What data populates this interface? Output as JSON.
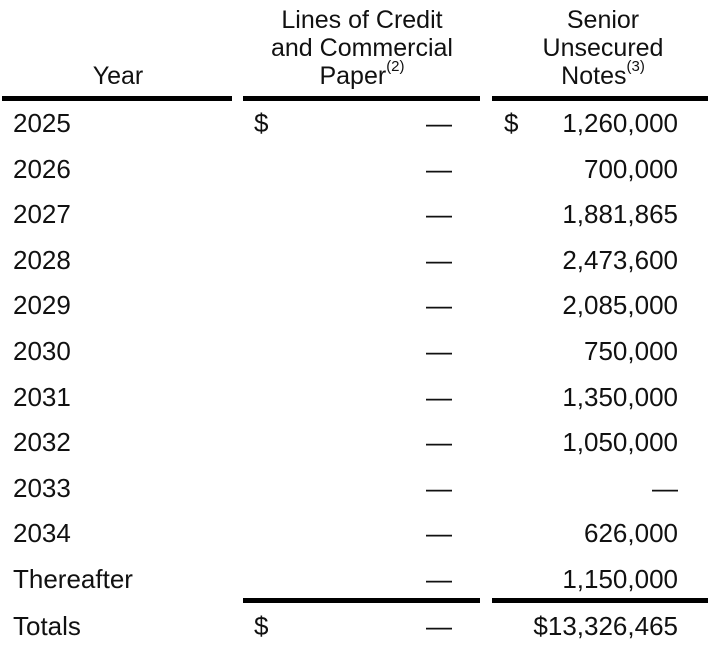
{
  "headers": {
    "year": "Year",
    "credit_line1": "Lines of Credit",
    "credit_line2": "and Commercial",
    "credit_line3": "Paper",
    "credit_note": "(2)",
    "notes_line1": "Senior",
    "notes_line2": "Unsecured",
    "notes_line3": "Notes",
    "notes_note": "(3)"
  },
  "rows": [
    {
      "year": "2025",
      "credit_symbol": "$",
      "credit": "—",
      "notes_symbol": "$",
      "notes": "1,260,000"
    },
    {
      "year": "2026",
      "credit_symbol": "",
      "credit": "—",
      "notes_symbol": "",
      "notes": "700,000"
    },
    {
      "year": "2027",
      "credit_symbol": "",
      "credit": "—",
      "notes_symbol": "",
      "notes": "1,881,865"
    },
    {
      "year": "2028",
      "credit_symbol": "",
      "credit": "—",
      "notes_symbol": "",
      "notes": "2,473,600"
    },
    {
      "year": "2029",
      "credit_symbol": "",
      "credit": "—",
      "notes_symbol": "",
      "notes": "2,085,000"
    },
    {
      "year": "2030",
      "credit_symbol": "",
      "credit": "—",
      "notes_symbol": "",
      "notes": "750,000"
    },
    {
      "year": "2031",
      "credit_symbol": "",
      "credit": "—",
      "notes_symbol": "",
      "notes": "1,350,000"
    },
    {
      "year": "2032",
      "credit_symbol": "",
      "credit": "—",
      "notes_symbol": "",
      "notes": "1,050,000"
    },
    {
      "year": "2033",
      "credit_symbol": "",
      "credit": "—",
      "notes_symbol": "",
      "notes": "—"
    },
    {
      "year": "2034",
      "credit_symbol": "",
      "credit": "—",
      "notes_symbol": "",
      "notes": "626,000"
    },
    {
      "year": "Thereafter",
      "credit_symbol": "",
      "credit": "—",
      "notes_symbol": "",
      "notes": "1,150,000"
    }
  ],
  "totals": {
    "label": "Totals",
    "credit_symbol": "$",
    "credit": "—",
    "notes_symbol": "",
    "notes": "$13,326,465"
  }
}
